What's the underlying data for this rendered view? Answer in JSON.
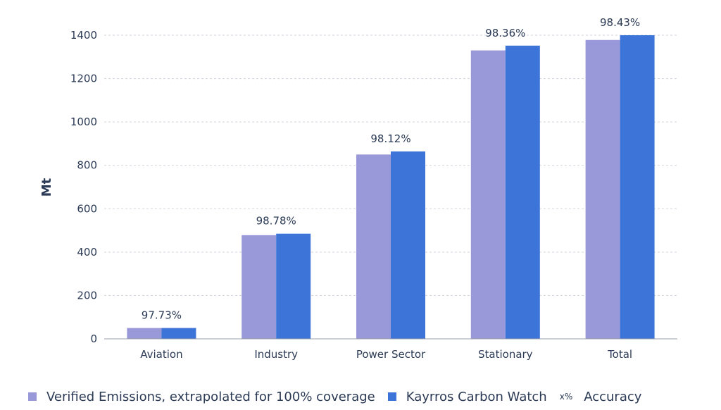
{
  "chart_data": {
    "type": "bar",
    "categories": [
      "Aviation",
      "Industry",
      "Power Sector",
      "Stationary",
      "Total"
    ],
    "series": [
      {
        "name": "Verified Emissions, extrapolated for 100% coverage",
        "color": "#9999d9",
        "values": [
          50,
          478,
          850,
          1330,
          1378
        ]
      },
      {
        "name": "Kayrros Carbon Watch",
        "color": "#3c74d8",
        "values": [
          50,
          485,
          864,
          1352,
          1400
        ]
      }
    ],
    "accuracy_labels": [
      "97.73%",
      "98.78%",
      "98.12%",
      "98.36%",
      "98.43%"
    ],
    "ylabel": "Mt",
    "ylim": [
      0,
      1400
    ],
    "yticks": [
      "0",
      "200",
      "400",
      "600",
      "800",
      "1000",
      "1200",
      "1400"
    ],
    "grid": true,
    "legend": {
      "placement": "bottom",
      "accuracy_marker": "x%",
      "accuracy_name": "Accuracy"
    }
  }
}
